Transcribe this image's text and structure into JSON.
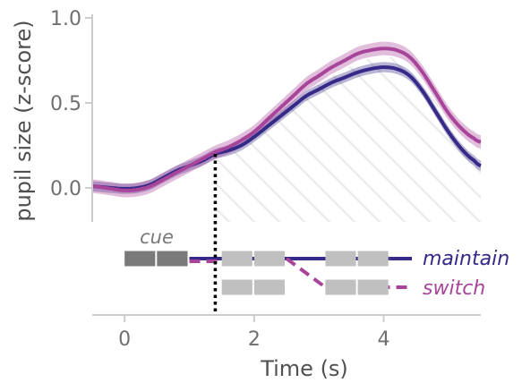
{
  "chart_data": {
    "type": "line",
    "xlabel": "Time (s)",
    "ylabel": "pupil size (z-score)",
    "xlim": [
      -0.5,
      5.5
    ],
    "ylim": [
      -0.2,
      1.0
    ],
    "x_ticks": [
      0,
      2,
      4
    ],
    "x_tick_labels": [
      "0",
      "2",
      "4"
    ],
    "y_ticks": [
      0.0,
      0.5,
      1.0
    ],
    "y_tick_labels": [
      "0.0",
      "0.5",
      "1.0"
    ],
    "grid": false,
    "marker_line_x": 1.4,
    "hatched_region_start_x": 1.4,
    "series": [
      {
        "name": "maintain",
        "color": "#352a87",
        "x": [
          -0.5,
          -0.2,
          0.0,
          0.2,
          0.4,
          0.6,
          0.8,
          1.0,
          1.2,
          1.4,
          1.6,
          1.8,
          2.0,
          2.2,
          2.4,
          2.6,
          2.8,
          3.0,
          3.2,
          3.4,
          3.6,
          3.8,
          4.0,
          4.2,
          4.4,
          4.6,
          4.8,
          5.0,
          5.2,
          5.4,
          5.5
        ],
        "values": [
          0.01,
          0.0,
          -0.005,
          0.0,
          0.02,
          0.06,
          0.1,
          0.13,
          0.16,
          0.2,
          0.22,
          0.25,
          0.3,
          0.36,
          0.42,
          0.48,
          0.54,
          0.58,
          0.62,
          0.65,
          0.68,
          0.7,
          0.71,
          0.7,
          0.66,
          0.57,
          0.45,
          0.33,
          0.23,
          0.16,
          0.13
        ],
        "band": 0.03
      },
      {
        "name": "switch",
        "color": "#a8459a",
        "x": [
          -0.5,
          -0.2,
          0.0,
          0.2,
          0.4,
          0.6,
          0.8,
          1.0,
          1.2,
          1.4,
          1.6,
          1.8,
          2.0,
          2.2,
          2.4,
          2.6,
          2.8,
          3.0,
          3.2,
          3.4,
          3.6,
          3.8,
          4.0,
          4.2,
          4.4,
          4.6,
          4.8,
          5.0,
          5.2,
          5.4,
          5.5
        ],
        "values": [
          0.01,
          -0.005,
          -0.015,
          -0.01,
          0.01,
          0.05,
          0.09,
          0.13,
          0.17,
          0.21,
          0.24,
          0.28,
          0.33,
          0.4,
          0.47,
          0.54,
          0.61,
          0.66,
          0.71,
          0.75,
          0.79,
          0.81,
          0.82,
          0.81,
          0.77,
          0.68,
          0.56,
          0.44,
          0.35,
          0.29,
          0.27
        ],
        "band": 0.04
      }
    ],
    "legend": {
      "placement": "bottom-right",
      "items": [
        {
          "label": "maintain",
          "color": "#352a87",
          "style": "solid"
        },
        {
          "label": "switch",
          "color": "#a8459a",
          "style": "dashed"
        }
      ]
    },
    "schematic": {
      "cue_label": "cue",
      "cue_box": {
        "x_start": 0.0,
        "x_end": 1.0,
        "segments": 2,
        "color": "#7a7a7a"
      },
      "maintain_boxes": [
        {
          "x_start": 1.5,
          "x_end": 2.5,
          "segments": 2
        },
        {
          "x_start": 3.1,
          "x_end": 4.1,
          "segments": 2
        }
      ],
      "switch_boxes": [
        {
          "x_start": 1.5,
          "x_end": 2.5,
          "segments": 2
        },
        {
          "x_start": 3.1,
          "x_end": 4.1,
          "segments": 2
        }
      ],
      "box_color": "#c0c0c0"
    }
  }
}
